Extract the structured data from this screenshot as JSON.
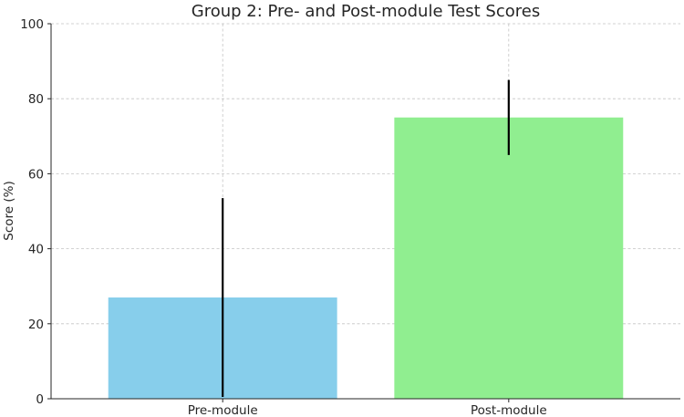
{
  "chart_data": {
    "type": "bar",
    "title": "Group 2: Pre- and Post-module Test Scores",
    "xlabel": "",
    "ylabel": "Score (%)",
    "categories": [
      "Pre-module",
      "Post-module"
    ],
    "values": [
      27,
      75
    ],
    "errors": [
      26.5,
      10
    ],
    "colors": [
      "#87ceeb",
      "#90ee90"
    ],
    "ylim": [
      0,
      100
    ],
    "yticks": [
      0,
      20,
      40,
      60,
      80,
      100
    ],
    "grid": true
  }
}
